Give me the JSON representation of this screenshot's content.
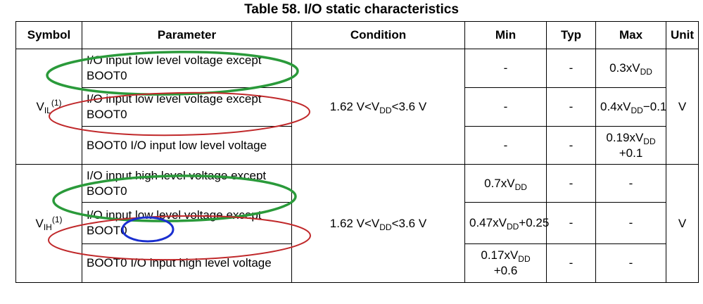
{
  "title": "Table 58. I/O static characteristics",
  "headers": {
    "symbol": "Symbol",
    "parameter": "Parameter",
    "condition": "Condition",
    "min": "Min",
    "typ": "Typ",
    "max": "Max",
    "unit": "Unit"
  },
  "groups": [
    {
      "symbol_main": "V",
      "symbol_sub": "IL",
      "symbol_sup": "(1)",
      "condition_pre": "1.62 V<V",
      "condition_sub": "DD",
      "condition_post": "<3.6 V",
      "unit": "V",
      "rows": [
        {
          "parameter": "I/O input low level voltage except BOOT0",
          "min": "-",
          "typ": "-",
          "max_pre": "0.3xV",
          "max_sub": "DD",
          "max_post": ""
        },
        {
          "parameter": "I/O input low level voltage except BOOT0",
          "min": "-",
          "typ": "-",
          "max_pre": "0.4xV",
          "max_sub": "DD",
          "max_post": "−0.1"
        },
        {
          "parameter": "BOOT0 I/O input low level voltage",
          "min": "-",
          "typ": "-",
          "max_pre": "0.19xV",
          "max_sub": "DD",
          "max_post": "+0.1"
        }
      ]
    },
    {
      "symbol_main": "V",
      "symbol_sub": "IH",
      "symbol_sup": "(1)",
      "condition_pre": "1.62 V<V",
      "condition_sub": "DD",
      "condition_post": "<3.6 V",
      "unit": "V",
      "rows": [
        {
          "parameter": "I/O input high level voltage except BOOT0",
          "min_pre": "0.7xV",
          "min_sub": "DD",
          "min_post": "",
          "typ": "-",
          "max": "-"
        },
        {
          "parameter": "I/O input low level voltage except BOOT0",
          "min_pre": "0.47xV",
          "min_sub": "DD",
          "min_post": "+0.25",
          "typ": "-",
          "max": "-"
        },
        {
          "parameter": "BOOT0 I/O input high level voltage",
          "min_pre": "0.17xV",
          "min_sub": "DD",
          "min_post": "+0.6",
          "typ": "-",
          "max": "-"
        }
      ]
    }
  ],
  "annotation_colors": {
    "green": "#2a9a3a",
    "red": "#c0282a",
    "blue": "#1a2fd0"
  }
}
